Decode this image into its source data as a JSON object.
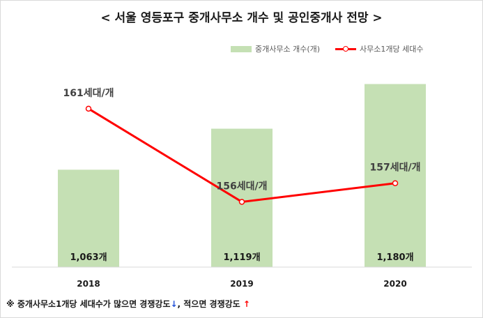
{
  "title": "< 서울 영등포구 중개사무소 개수 및 공인중개사 전망 >",
  "legend": {
    "bar_label": "중개사무소 개수(개)",
    "line_label": "사무소1개당 세대수"
  },
  "footnote": {
    "prefix": "※ 중개사무소1개당 세대수가 많으면 경쟁강도",
    "down_arrow": "↓",
    "middle": ", 적으면 경쟁강도 ",
    "up_arrow": "↑"
  },
  "colors": {
    "bar": "#c5e0b4",
    "line": "#ff0000",
    "text": "#1a1a1a",
    "down_arrow": "#1f4fd8",
    "up_arrow": "#ff0000"
  },
  "chart_data": {
    "type": "bar",
    "categories": [
      "2018",
      "2019",
      "2020"
    ],
    "series": [
      {
        "name": "중개사무소 개수(개)",
        "type": "bar",
        "values": [
          1063,
          1119,
          1180
        ],
        "data_labels": [
          "1,063개",
          "1,119개",
          "1,180개"
        ]
      },
      {
        "name": "사무소1개당 세대수",
        "type": "line",
        "values": [
          161,
          156,
          157
        ],
        "data_labels": [
          "161세대/개",
          "156세대/개",
          "157세대/개"
        ]
      }
    ],
    "bar_axis_range": [
      930,
      1210
    ],
    "line_axis_range": [
      152.5,
      163.5
    ],
    "grid": false,
    "legend_position": "top-right"
  }
}
